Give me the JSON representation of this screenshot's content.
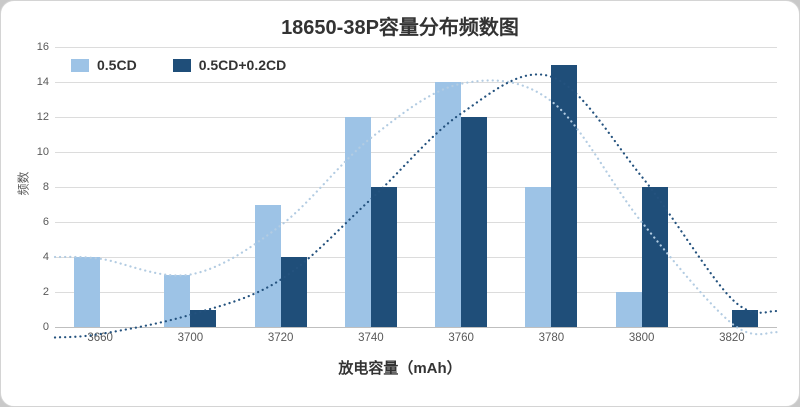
{
  "chart_data": {
    "type": "bar",
    "title": "18650-38P容量分布频数图",
    "xlabel": "放电容量（mAh）",
    "ylabel": "频数",
    "categories": [
      "3660",
      "3700",
      "3720",
      "3740",
      "3760",
      "3780",
      "3800",
      "3820"
    ],
    "series": [
      {
        "name": "0.5CD",
        "color": "#9DC3E6",
        "curve_color": "#B3CCE2",
        "values": [
          4,
          3,
          7,
          12,
          14,
          8,
          2,
          0
        ],
        "trend": [
          3.9,
          3.0,
          5.8,
          10.8,
          13.9,
          12.9,
          6.0,
          0.2
        ],
        "trend_left": 4.0,
        "trend_right": -0.3
      },
      {
        "name": "0.5CD+0.2CD",
        "color": "#1F4E79",
        "curve_color": "#24527E",
        "values": [
          0,
          1,
          4,
          8,
          12,
          15,
          8,
          1
        ],
        "trend": [
          -0.4,
          0.7,
          2.7,
          7.3,
          12.2,
          14.3,
          8.6,
          1.6
        ],
        "trend_left": -0.6,
        "trend_right": 0.9
      }
    ],
    "ylim": [
      0,
      16
    ],
    "ytick_step": 2,
    "grid": true,
    "legend_position": "top-left",
    "trend_style": "dotted"
  }
}
